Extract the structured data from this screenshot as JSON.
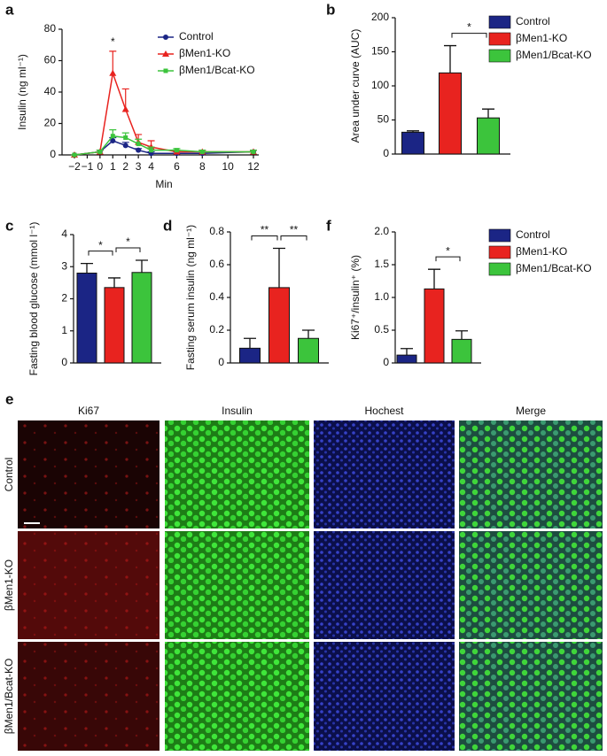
{
  "panel_labels": [
    "a",
    "b",
    "c",
    "d",
    "f",
    "e"
  ],
  "chart_data": [
    {
      "type": "line",
      "x": [
        -2,
        0,
        1,
        2,
        3,
        4,
        6,
        8,
        12
      ],
      "xlim": [
        -2,
        12
      ],
      "xticks": [
        {
          "value": -2,
          "label": "−2"
        },
        {
          "value": -1,
          "label": "−1"
        },
        0,
        1,
        2,
        3,
        4,
        6,
        8,
        10,
        12
      ],
      "ylim": [
        0,
        80
      ],
      "yticks": [
        0,
        20,
        40,
        60,
        80
      ],
      "xlabel": "Min",
      "ylabel": "Insulin (ng ml⁻¹)",
      "series": [
        {
          "name": "Control",
          "color": "#1b2585",
          "marker": "circle",
          "values": [
            0,
            2,
            9,
            6,
            3,
            1,
            1,
            1,
            2
          ],
          "errors": [
            0,
            1,
            2,
            2,
            1,
            1,
            1,
            1,
            1
          ]
        },
        {
          "name": "βMen1-KO",
          "color": "#e8231f",
          "marker": "triangle",
          "values": [
            0,
            2,
            52,
            29,
            8,
            5,
            2,
            2,
            2
          ],
          "errors": [
            0,
            1,
            14,
            13,
            5,
            4,
            1,
            1,
            1
          ]
        },
        {
          "name": "βMen1/Bcat-KO",
          "color": "#3cc43c",
          "marker": "square",
          "values": [
            0,
            2,
            12,
            11,
            7,
            3,
            3,
            2,
            2
          ],
          "errors": [
            0,
            1,
            4,
            3,
            3,
            2,
            1,
            1,
            1
          ]
        }
      ],
      "annotations": [
        {
          "x": 1,
          "label": "*"
        }
      ],
      "legend": "upper right"
    },
    {
      "type": "bar",
      "categories": [
        "Control",
        "βMen1-KO",
        "βMen1/Bcat-KO"
      ],
      "colors": [
        "#1b2585",
        "#e8231f",
        "#3cc43c"
      ],
      "values": [
        32,
        119,
        53
      ],
      "errors": [
        2,
        40,
        13
      ],
      "ylim": [
        0,
        200
      ],
      "yticks": [
        0,
        50,
        100,
        150,
        200
      ],
      "ylabel": "Area under curve (AUC)",
      "comparisons": [
        {
          "between": [
            1,
            2
          ],
          "label": "*"
        }
      ],
      "legend": "right"
    },
    {
      "type": "bar",
      "categories": [
        null,
        null,
        null
      ],
      "colors": [
        "#1b2585",
        "#e8231f",
        "#3cc43c"
      ],
      "values": [
        2.8,
        2.35,
        2.82
      ],
      "errors": [
        0.3,
        0.3,
        0.38
      ],
      "ylim": [
        0,
        4
      ],
      "yticks": [
        0,
        1,
        2,
        3,
        4
      ],
      "ylabel": "Fasting blood glucose (mmol l⁻¹)",
      "comparisons": [
        {
          "between": [
            0,
            1
          ],
          "label": "*"
        },
        {
          "between": [
            1,
            2
          ],
          "label": "*"
        }
      ]
    },
    {
      "type": "bar",
      "categories": [
        null,
        null,
        null
      ],
      "colors": [
        "#1b2585",
        "#e8231f",
        "#3cc43c"
      ],
      "values": [
        0.09,
        0.46,
        0.15
      ],
      "errors": [
        0.06,
        0.24,
        0.05
      ],
      "ylim": [
        0,
        0.8
      ],
      "yticks": [
        0,
        0.2,
        0.4,
        0.6,
        0.8
      ],
      "ylabel": "Fasting serum insulin (ng ml⁻¹)",
      "comparisons": [
        {
          "between": [
            0,
            1
          ],
          "label": "**"
        },
        {
          "between": [
            1,
            2
          ],
          "label": "**"
        }
      ]
    },
    {
      "type": "bar",
      "categories": [
        "Control",
        "βMen1-KO",
        "βMen1/Bcat-KO"
      ],
      "colors": [
        "#1b2585",
        "#e8231f",
        "#3cc43c"
      ],
      "values": [
        0.12,
        1.13,
        0.36
      ],
      "errors": [
        0.1,
        0.3,
        0.13
      ],
      "ylim": [
        0,
        2
      ],
      "yticks": [
        0,
        0.5,
        {
          "value": 1,
          "label": "1.0"
        },
        1.5,
        {
          "value": 2,
          "label": "2.0"
        }
      ],
      "ylabel": "Ki67⁺/insulin⁺ (%)",
      "comparisons": [
        {
          "between": [
            1,
            2
          ],
          "label": "*"
        }
      ],
      "legend": "right"
    }
  ],
  "images": {
    "columns": [
      "Ki67",
      "Insulin",
      "Hochest",
      "Merge"
    ],
    "column_colors": [
      "#e8231f",
      "#2ec82e",
      "#3030c8",
      "#f0a020"
    ],
    "rows": [
      "Control",
      "βMen1-KO",
      "βMen1/Bcat-KO"
    ]
  }
}
